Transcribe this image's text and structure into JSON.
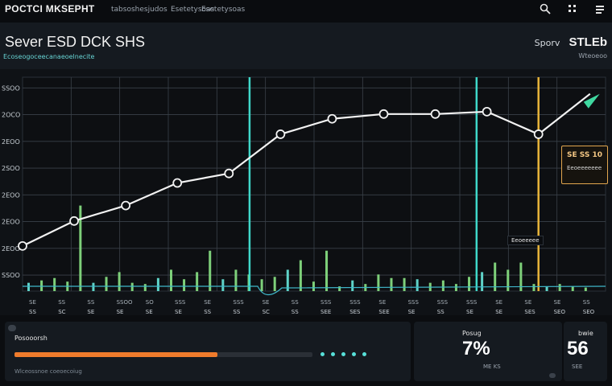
{
  "app": {
    "title": "POCTCI MKSEPHT",
    "tabs": [
      "tabsoshesjudos",
      "Esetetysoas",
      "Esetetysoas"
    ]
  },
  "header": {
    "title": "Sever ESD DCK SHS",
    "subtitle": "Ecoseogoceecanaeoelnecite",
    "right_label": "Sporv",
    "right_value": "STLEb",
    "right_sub": "Wteoeoo"
  },
  "chart_data": {
    "type": "line",
    "y_tick_labels": [
      "SSOO",
      "2OCO",
      "2EOO",
      "2SOO",
      "2EOO",
      "2EOO",
      "2EOO",
      "SSOO"
    ],
    "x_tick_labels": [
      "SS",
      "SC",
      "SE",
      "SE",
      "SE",
      "SE",
      "SS",
      "SS",
      "SC",
      "SS",
      "SEE",
      "SES",
      "SEE",
      "SE",
      "SS",
      "SE",
      "SE",
      "SES",
      "SEO",
      "SEO"
    ],
    "x_labels_top": [
      "SE",
      "SS",
      "SS",
      "SSOO",
      "SO",
      "SSS",
      "SE",
      "SSS",
      "SE",
      "SS",
      "SSS",
      "SSS",
      "SE",
      "SSS",
      "SSS",
      "SSS",
      "SE",
      "SE",
      "SE",
      "SS"
    ],
    "line_series": {
      "name": "",
      "x": [
        0,
        1,
        2,
        3,
        4,
        5,
        6,
        7,
        8,
        9,
        10,
        11
      ],
      "y": [
        1.9,
        2.95,
        3.6,
        4.55,
        4.95,
        6.6,
        7.25,
        7.45,
        7.45,
        7.55,
        6.6,
        8.3
      ]
    },
    "bar_series": {
      "name": "",
      "values": [
        0.35,
        0.45,
        0.55,
        0.4,
        3.6,
        0.35,
        0.6,
        0.8,
        0.35,
        0.3,
        0.55,
        0.9,
        0.5,
        0.8,
        1.7,
        0.5,
        0.9,
        0.7,
        0.5,
        0.6,
        0.9,
        1.3,
        0.4,
        1.7,
        0.2,
        0.45,
        0.3,
        0.7,
        0.55,
        0.55,
        0.5,
        0.35,
        0.45,
        0.3,
        0.6,
        0.8,
        1.2,
        0.9,
        1.2,
        0.3,
        0.2,
        0.3,
        0.2,
        0.15
      ]
    },
    "highlights": [
      {
        "label": "",
        "color": "#3fd8c9",
        "x": 4.4
      },
      {
        "label": "",
        "color": "#3fd8c9",
        "x": 8.8
      },
      {
        "label": "",
        "color": "#e7b43a",
        "x": 10.0
      }
    ],
    "annotations": [
      {
        "text": "SE SS 10",
        "subtext": "Eeoeeeeeee"
      },
      {
        "text": "Eeoeeeee"
      }
    ],
    "colors": {
      "line": "#f2f2f2",
      "bars": "#7ed07a",
      "accent_teal": "#3fd8c9",
      "accent_gold": "#e7b43a",
      "grid": "#3a4149"
    }
  },
  "bottom": {
    "left_label": "Posooorsh",
    "progress_fraction": 0.68,
    "progress_color": "#ef7b2c",
    "note": "Wlceossnoe coeoecoiug",
    "mid_label": "Posug",
    "mid_value": "7%",
    "mid_sub": "ME KS",
    "right_label": "bwie",
    "right_value": "56",
    "right_sub": "SEE"
  }
}
